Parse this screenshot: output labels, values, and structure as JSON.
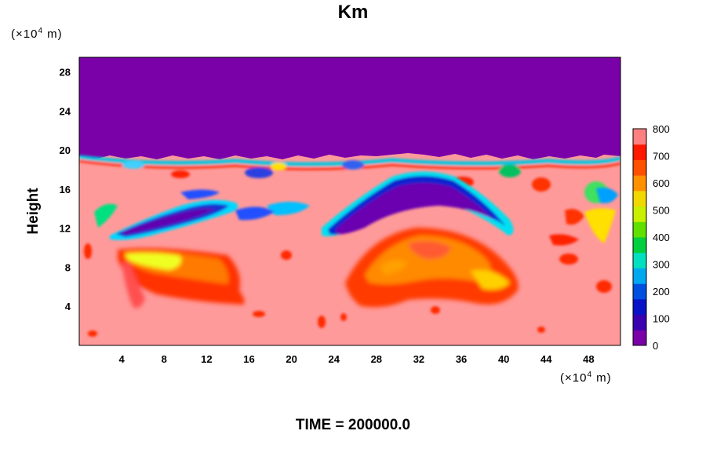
{
  "chart_data": {
    "type": "heatmap",
    "title": "Km",
    "ylabel": "Height",
    "x_unit_prefix": "(×10",
    "x_unit_exp": "4",
    "x_unit_suffix": " m)",
    "y_unit_prefix": "(×10",
    "y_unit_exp": "4",
    "y_unit_suffix": " m)",
    "footer": "TIME = 200000.0",
    "xlim": [
      0,
      51
    ],
    "ylim": [
      0,
      29.5
    ],
    "x_ticks": [
      4,
      8,
      12,
      16,
      20,
      24,
      28,
      32,
      36,
      40,
      44,
      48
    ],
    "y_ticks": [
      4,
      8,
      12,
      16,
      20,
      24,
      28
    ],
    "colorbar": {
      "range": [
        0,
        800
      ],
      "ticks": [
        0,
        100,
        200,
        300,
        400,
        500,
        600,
        700,
        800
      ],
      "colors": [
        "#7a00a8",
        "#3a00b0",
        "#0a12c8",
        "#0050e0",
        "#00a8f0",
        "#00e0c0",
        "#00d040",
        "#60e000",
        "#c8f000",
        "#f0d800",
        "#ff9000",
        "#ff5000",
        "#ff1800",
        "#ff8080"
      ]
    },
    "regions": [
      {
        "kind": "background",
        "value": 800,
        "color": "#ff9a9a"
      },
      {
        "kind": "top-layer",
        "y_from": 19.7,
        "y_to": 29.5,
        "value": 0,
        "color": "#7a00a8"
      },
      {
        "kind": "low-band",
        "x": [
          2,
          16
        ],
        "y": [
          11,
          17
        ],
        "value": 50
      },
      {
        "kind": "low-band",
        "x": [
          24,
          42
        ],
        "y": [
          11,
          19
        ],
        "value": 30
      },
      {
        "kind": "high-patch",
        "x": [
          4,
          15
        ],
        "y": [
          5,
          10
        ],
        "value": 600
      },
      {
        "kind": "high-patch",
        "x": [
          27,
          43
        ],
        "y": [
          4,
          12.5
        ],
        "value": 650
      }
    ]
  }
}
